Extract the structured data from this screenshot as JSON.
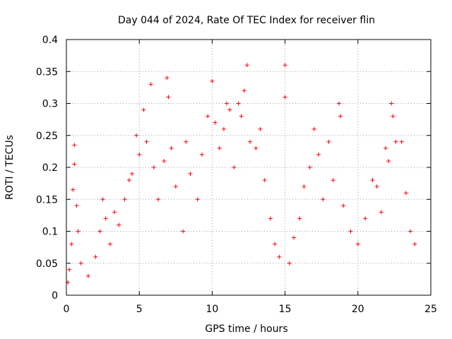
{
  "chart_data": {
    "type": "scatter",
    "title": "Day 044 of 2024, Rate Of TEC Index for receiver flin",
    "xlabel": "GPS time / hours",
    "ylabel": "ROTI / TECUs",
    "xlim": [
      0,
      25
    ],
    "ylim": [
      0,
      0.4
    ],
    "xticks": [
      "0",
      "5",
      "10",
      "15",
      "20",
      "25"
    ],
    "yticks": [
      "0",
      "0.05",
      "0.1",
      "0.15",
      "0.2",
      "0.25",
      "0.3",
      "0.35",
      "0.4"
    ],
    "grid": true,
    "marker": "plus",
    "color": "#ff0000",
    "points": [
      [
        0.1,
        0.02
      ],
      [
        0.2,
        0.04
      ],
      [
        0.35,
        0.08
      ],
      [
        0.45,
        0.165
      ],
      [
        0.55,
        0.235
      ],
      [
        0.55,
        0.205
      ],
      [
        0.7,
        0.14
      ],
      [
        0.8,
        0.1
      ],
      [
        1.0,
        0.05
      ],
      [
        1.5,
        0.03
      ],
      [
        2.0,
        0.06
      ],
      [
        2.3,
        0.1
      ],
      [
        2.5,
        0.15
      ],
      [
        2.7,
        0.12
      ],
      [
        3.0,
        0.08
      ],
      [
        3.3,
        0.13
      ],
      [
        3.6,
        0.11
      ],
      [
        4.0,
        0.15
      ],
      [
        4.3,
        0.18
      ],
      [
        4.5,
        0.19
      ],
      [
        4.8,
        0.25
      ],
      [
        5.0,
        0.22
      ],
      [
        5.3,
        0.29
      ],
      [
        5.5,
        0.24
      ],
      [
        5.8,
        0.33
      ],
      [
        6.0,
        0.2
      ],
      [
        6.3,
        0.15
      ],
      [
        6.7,
        0.21
      ],
      [
        6.9,
        0.34
      ],
      [
        7.0,
        0.31
      ],
      [
        7.2,
        0.23
      ],
      [
        7.5,
        0.17
      ],
      [
        8.0,
        0.1
      ],
      [
        8.2,
        0.24
      ],
      [
        8.5,
        0.19
      ],
      [
        9.0,
        0.15
      ],
      [
        9.3,
        0.22
      ],
      [
        9.7,
        0.28
      ],
      [
        10.0,
        0.335
      ],
      [
        10.2,
        0.27
      ],
      [
        10.5,
        0.23
      ],
      [
        10.8,
        0.26
      ],
      [
        11.0,
        0.3
      ],
      [
        11.2,
        0.29
      ],
      [
        11.5,
        0.2
      ],
      [
        11.8,
        0.3
      ],
      [
        12.0,
        0.28
      ],
      [
        12.2,
        0.32
      ],
      [
        12.4,
        0.36
      ],
      [
        12.6,
        0.24
      ],
      [
        13.0,
        0.23
      ],
      [
        13.3,
        0.26
      ],
      [
        13.6,
        0.18
      ],
      [
        14.0,
        0.12
      ],
      [
        14.3,
        0.08
      ],
      [
        14.6,
        0.06
      ],
      [
        15.0,
        0.36
      ],
      [
        15.0,
        0.31
      ],
      [
        15.3,
        0.05
      ],
      [
        15.6,
        0.09
      ],
      [
        16.0,
        0.12
      ],
      [
        16.3,
        0.17
      ],
      [
        16.7,
        0.2
      ],
      [
        17.0,
        0.26
      ],
      [
        17.3,
        0.22
      ],
      [
        17.6,
        0.15
      ],
      [
        18.0,
        0.24
      ],
      [
        18.3,
        0.18
      ],
      [
        18.7,
        0.3
      ],
      [
        18.8,
        0.28
      ],
      [
        19.0,
        0.14
      ],
      [
        19.5,
        0.1
      ],
      [
        20.0,
        0.08
      ],
      [
        20.5,
        0.12
      ],
      [
        21.0,
        0.18
      ],
      [
        21.3,
        0.17
      ],
      [
        21.6,
        0.13
      ],
      [
        21.9,
        0.23
      ],
      [
        22.1,
        0.21
      ],
      [
        22.3,
        0.3
      ],
      [
        22.4,
        0.28
      ],
      [
        22.6,
        0.24
      ],
      [
        23.0,
        0.24
      ],
      [
        23.3,
        0.16
      ],
      [
        23.6,
        0.1
      ],
      [
        23.9,
        0.08
      ]
    ]
  }
}
